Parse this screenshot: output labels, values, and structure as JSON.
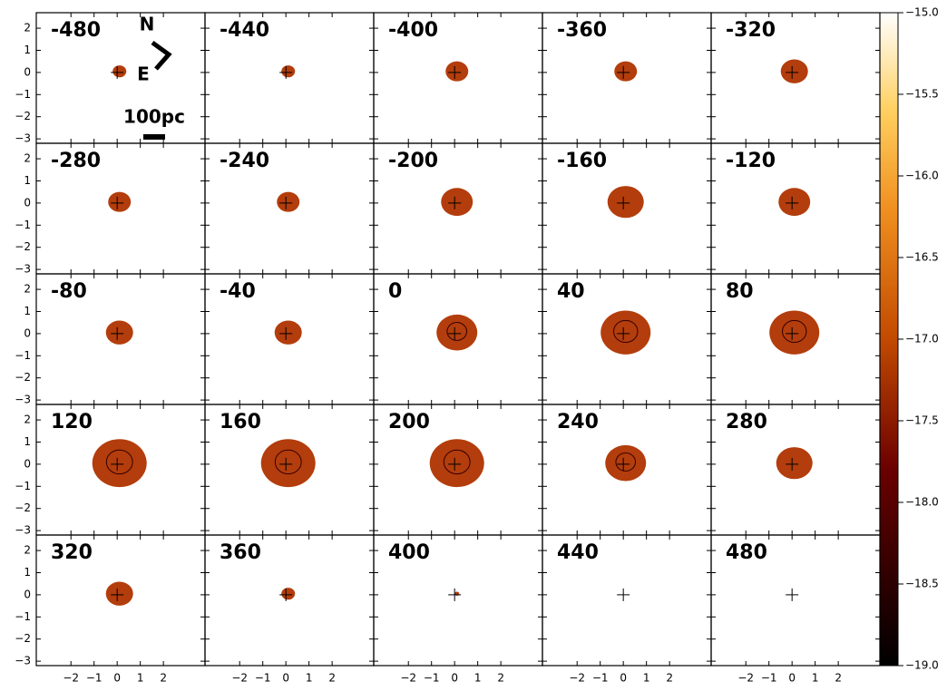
{
  "chart_data": {
    "type": "channel-maps",
    "panels": [
      "-480",
      "-440",
      "-400",
      "-360",
      "-320",
      "-280",
      "-240",
      "-200",
      "-160",
      "-120",
      "-80",
      "-40",
      "0",
      "40",
      "80",
      "120",
      "160",
      "200",
      "240",
      "280",
      "320",
      "360",
      "400",
      "440",
      "480"
    ],
    "columns": 5,
    "xlim": [
      -3.5,
      3.8
    ],
    "ylim": [
      -3.2,
      2.7
    ],
    "xticks": [
      {
        "value": -2,
        "label": "−2"
      },
      {
        "value": -1,
        "label": "−1"
      },
      0,
      1,
      2
    ],
    "yticks": [
      {
        "value": -3,
        "label": "−3"
      },
      {
        "value": -2,
        "label": "−2"
      },
      {
        "value": -1,
        "label": "−1"
      },
      0,
      1,
      2
    ],
    "colorbar": {
      "clim": [
        -19,
        -15
      ],
      "ticks": [
        {
          "value": -15,
          "label": "−15.0"
        },
        {
          "value": -15.5,
          "label": "−15.5"
        },
        {
          "value": -16,
          "label": "−16.0"
        },
        {
          "value": -16.5,
          "label": "−16.5"
        },
        {
          "value": -17,
          "label": "−17.0"
        },
        {
          "value": -17.5,
          "label": "−17.5"
        },
        {
          "value": -18,
          "label": "−18.0"
        },
        {
          "value": -18.5,
          "label": "−18.5"
        },
        {
          "value": -19,
          "label": "−19.0"
        }
      ]
    },
    "annotations": {
      "north": "N",
      "east": "E",
      "scale": "100pc"
    }
  }
}
